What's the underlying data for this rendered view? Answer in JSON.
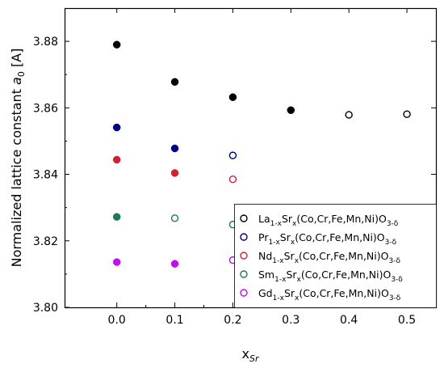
{
  "chart_data": {
    "type": "scatter",
    "xlabel": {
      "main": "x",
      "sub": "Sr"
    },
    "ylabel": {
      "pre": "Normalized lattice constant ",
      "var": "a",
      "sub": "0",
      "post": " [A]"
    },
    "xlim": [
      -0.09,
      0.55
    ],
    "ylim": [
      3.8,
      3.89
    ],
    "xticks": [
      "0.0",
      "0.1",
      "0.2",
      "0.3",
      "0.4",
      "0.5"
    ],
    "yticks": [
      "3.80",
      "3.82",
      "3.84",
      "3.86",
      "3.88"
    ],
    "grid": false,
    "legend_position": "bottom-right",
    "series": [
      {
        "name": "La1-xSrx(Co,Cr,Fe,Mn,Ni)O3-δ",
        "legend": {
          "el": "La",
          "sub1": "1-x",
          "sr": "Sr",
          "sub2": "x",
          "mid": "(Co,Cr,Fe,Mn,Ni)O",
          "sub3": "3-δ"
        },
        "color": "#000000",
        "points": [
          {
            "x": 0.0,
            "y": 3.879,
            "filled": true
          },
          {
            "x": 0.1,
            "y": 3.8678,
            "filled": true
          },
          {
            "x": 0.2,
            "y": 3.8632,
            "filled": true
          },
          {
            "x": 0.3,
            "y": 3.8593,
            "filled": true
          },
          {
            "x": 0.4,
            "y": 3.8579,
            "filled": false
          },
          {
            "x": 0.5,
            "y": 3.8581,
            "filled": false
          }
        ]
      },
      {
        "name": "Pr1-xSrx(Co,Cr,Fe,Mn,Ni)O3-δ",
        "legend": {
          "el": "Pr",
          "sub1": "1-x",
          "sr": "Sr",
          "sub2": "x",
          "mid": "(Co,Cr,Fe,Mn,Ni)O",
          "sub3": "3-δ"
        },
        "color": "#00008b",
        "points": [
          {
            "x": 0.0,
            "y": 3.8541,
            "filled": true
          },
          {
            "x": 0.1,
            "y": 3.8478,
            "filled": true
          },
          {
            "x": 0.2,
            "y": 3.8457,
            "filled": false
          }
        ]
      },
      {
        "name": "Nd1-xSrx(Co,Cr,Fe,Mn,Ni)O3-δ",
        "legend": {
          "el": "Nd",
          "sub1": "1-x",
          "sr": "Sr",
          "sub2": "x",
          "mid": "(Co,Cr,Fe,Mn,Ni)O",
          "sub3": "3-δ"
        },
        "color": "#cc2233",
        "points": [
          {
            "x": 0.0,
            "y": 3.8444,
            "filled": true
          },
          {
            "x": 0.1,
            "y": 3.8404,
            "filled": true
          },
          {
            "x": 0.2,
            "y": 3.8385,
            "filled": false
          }
        ]
      },
      {
        "name": "Sm1-xSrx(Co,Cr,Fe,Mn,Ni)O3-δ",
        "legend": {
          "el": "Sm",
          "sub1": "1-x",
          "sr": "Sr",
          "sub2": "x",
          "mid": "(Co,Cr,Fe,Mn,Ni)O",
          "sub3": "3-δ"
        },
        "color": "#1e7b4f",
        "points": [
          {
            "x": 0.0,
            "y": 3.8272,
            "filled": true
          },
          {
            "x": 0.1,
            "y": 3.8268,
            "filled": false
          },
          {
            "x": 0.2,
            "y": 3.8249,
            "filled": false
          }
        ]
      },
      {
        "name": "Gd1-xSrx(Co,Cr,Fe,Mn,Ni)O3-δ",
        "legend": {
          "el": "Gd",
          "sub1": "1-x",
          "sr": "Sr",
          "sub2": "x",
          "mid": "(Co,Cr,Fe,Mn,Ni)O",
          "sub3": "3-δ"
        },
        "color": "#bb11ee",
        "points": [
          {
            "x": 0.0,
            "y": 3.8136,
            "filled": true
          },
          {
            "x": 0.1,
            "y": 3.8131,
            "filled": true
          },
          {
            "x": 0.2,
            "y": 3.8142,
            "filled": false
          }
        ]
      }
    ]
  }
}
